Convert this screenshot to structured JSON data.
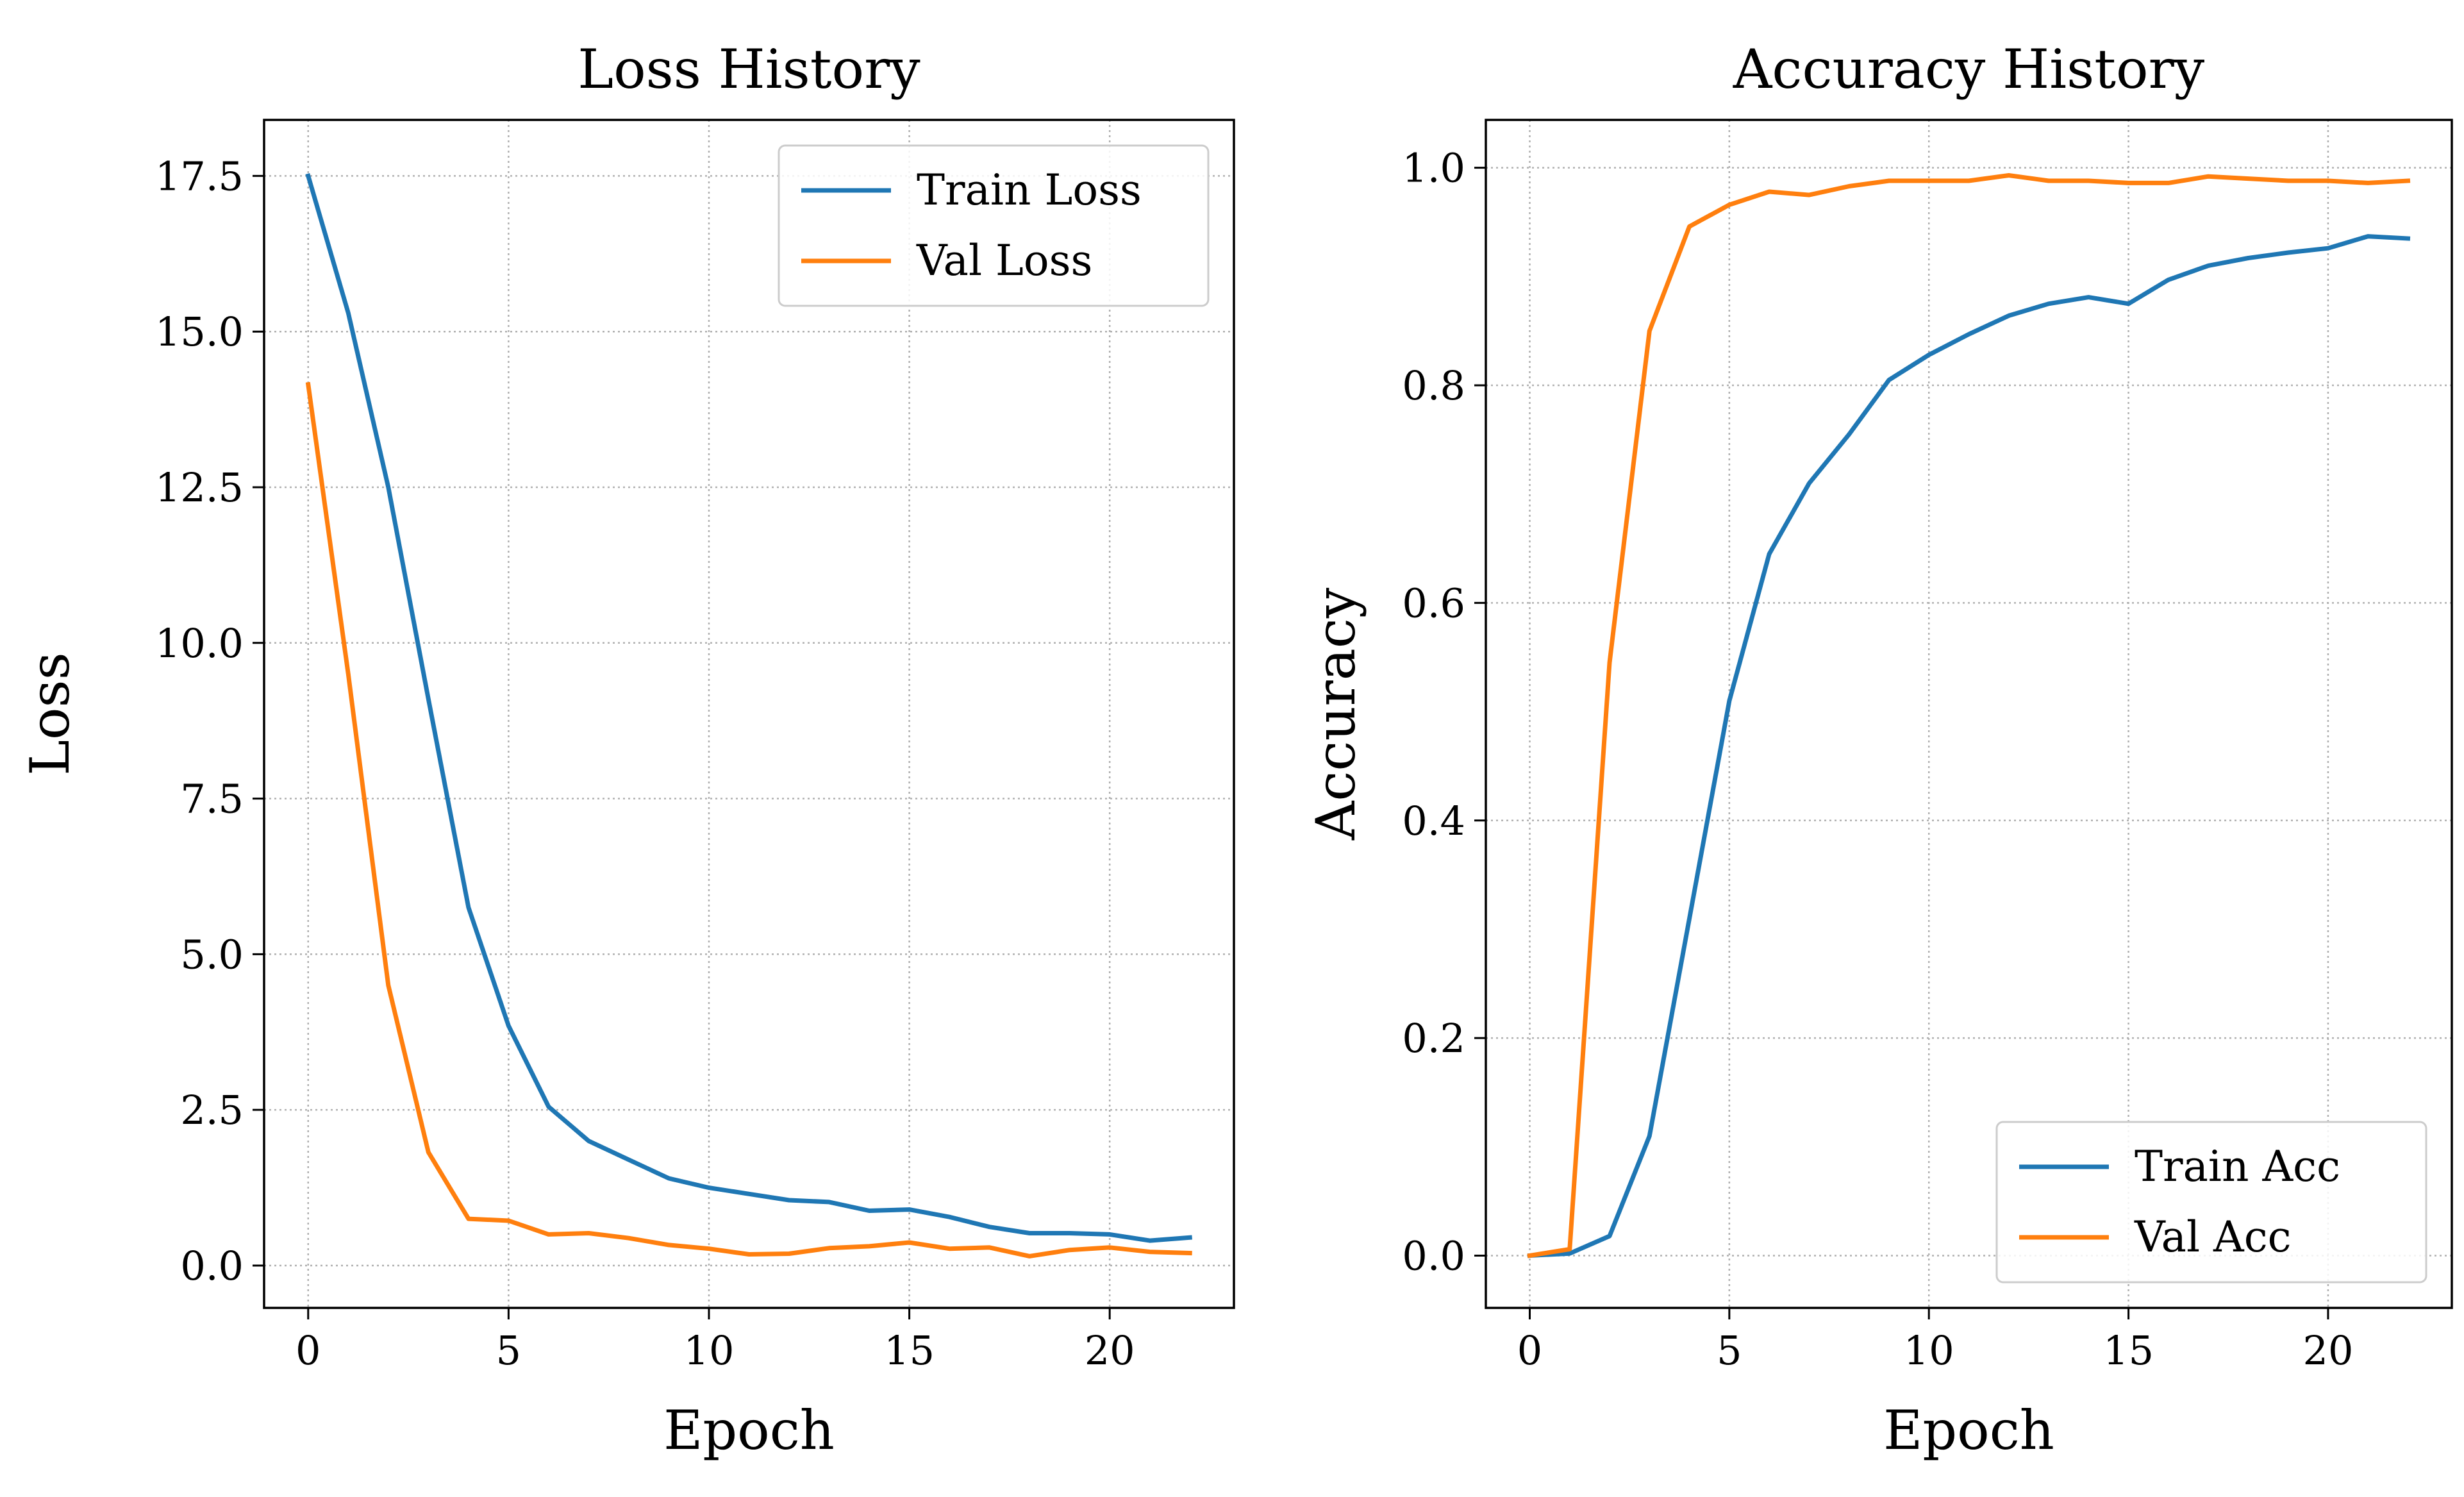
{
  "chart_data": [
    {
      "type": "line",
      "title": "Loss History",
      "xlabel": "Epoch",
      "ylabel": "Loss",
      "xlim": [
        -1.1,
        23.1
      ],
      "ylim": [
        -0.68,
        18.4
      ],
      "xticks": [
        0,
        5,
        10,
        15,
        20
      ],
      "yticks": [
        0.0,
        2.5,
        5.0,
        7.5,
        10.0,
        12.5,
        15.0,
        17.5
      ],
      "xtick_labels": [
        "0",
        "5",
        "10",
        "15",
        "20"
      ],
      "ytick_labels": [
        "0.0",
        "2.5",
        "5.0",
        "7.5",
        "10.0",
        "12.5",
        "15.0",
        "17.5"
      ],
      "grid": true,
      "legend_position": "upper right",
      "x": [
        0,
        1,
        2,
        3,
        4,
        5,
        6,
        7,
        8,
        9,
        10,
        11,
        12,
        13,
        14,
        15,
        16,
        17,
        18,
        19,
        20,
        21,
        22
      ],
      "series": [
        {
          "name": "Train Loss",
          "color": "#1f77b4",
          "values": [
            17.5,
            15.3,
            12.5,
            9.1,
            5.75,
            3.85,
            2.55,
            2.0,
            1.7,
            1.4,
            1.25,
            1.15,
            1.05,
            1.02,
            0.88,
            0.9,
            0.78,
            0.62,
            0.52,
            0.52,
            0.5,
            0.4,
            0.45
          ]
        },
        {
          "name": "Val Loss",
          "color": "#ff7f0e",
          "values": [
            14.15,
            9.5,
            4.5,
            1.82,
            0.75,
            0.72,
            0.5,
            0.52,
            0.44,
            0.33,
            0.27,
            0.18,
            0.19,
            0.28,
            0.31,
            0.37,
            0.27,
            0.29,
            0.15,
            0.25,
            0.29,
            0.22,
            0.2
          ]
        }
      ]
    },
    {
      "type": "line",
      "title": "Accuracy History",
      "xlabel": "Epoch",
      "ylabel": "Accuracy",
      "xlim": [
        -1.1,
        23.1
      ],
      "ylim": [
        -0.048,
        1.044
      ],
      "xticks": [
        0,
        5,
        10,
        15,
        20
      ],
      "yticks": [
        0.0,
        0.2,
        0.4,
        0.6,
        0.8,
        1.0
      ],
      "xtick_labels": [
        "0",
        "5",
        "10",
        "15",
        "20"
      ],
      "ytick_labels": [
        "0.0",
        "0.2",
        "0.4",
        "0.6",
        "0.8",
        "1.0"
      ],
      "grid": true,
      "legend_position": "lower right",
      "x": [
        0,
        1,
        2,
        3,
        4,
        5,
        6,
        7,
        8,
        9,
        10,
        11,
        12,
        13,
        14,
        15,
        16,
        17,
        18,
        19,
        20,
        21,
        22
      ],
      "series": [
        {
          "name": "Train Acc",
          "color": "#1f77b4",
          "values": [
            0.0,
            0.002,
            0.018,
            0.11,
            0.31,
            0.51,
            0.645,
            0.71,
            0.755,
            0.805,
            0.828,
            0.847,
            0.864,
            0.875,
            0.881,
            0.875,
            0.897,
            0.91,
            0.917,
            0.922,
            0.926,
            0.937,
            0.935
          ]
        },
        {
          "name": "Val Acc",
          "color": "#ff7f0e",
          "values": [
            0.0,
            0.006,
            0.545,
            0.85,
            0.946,
            0.966,
            0.978,
            0.975,
            0.983,
            0.988,
            0.988,
            0.988,
            0.993,
            0.988,
            0.988,
            0.986,
            0.986,
            0.992,
            0.99,
            0.988,
            0.988,
            0.986,
            0.988
          ]
        }
      ]
    }
  ]
}
